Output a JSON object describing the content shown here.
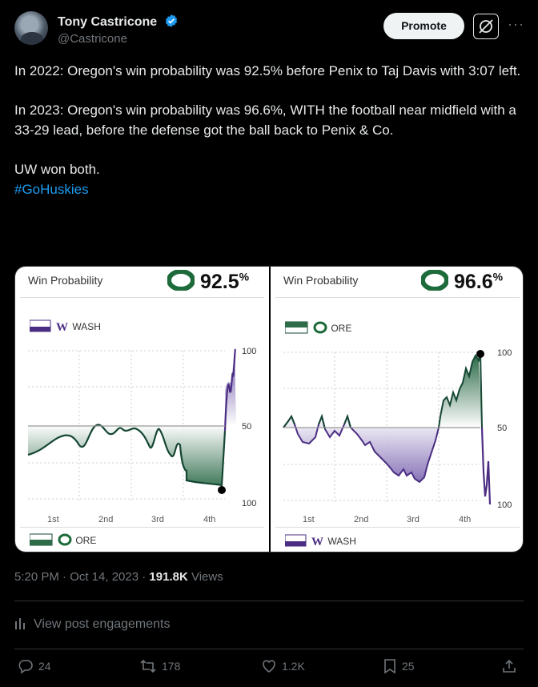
{
  "author": {
    "name": "Tony Castricone",
    "handle": "@Castricone",
    "verified": true
  },
  "header": {
    "promote_label": "Promote",
    "more_icon": "more-icon"
  },
  "tweet": {
    "paragraph1": "In 2022: Oregon's win probability was 92.5% before Penix to Taj Davis with 3:07 left.",
    "paragraph2": "In 2023: Oregon's win probability was 96.6%, WITH the football near midfield with a 33-29 lead, before the defense got the ball back to Penix & Co.",
    "paragraph3": "UW won both.",
    "hashtag": "#GoHuskies"
  },
  "charts": {
    "left": {
      "title": "Win Probability",
      "pct": "92.5",
      "pct_sup": "%",
      "top_team": "WASH",
      "bottom_team": "ORE",
      "y_top": "100",
      "y_mid": "50",
      "y_bot": "100",
      "quarters": [
        "1st",
        "2nd",
        "3rd",
        "4th"
      ]
    },
    "right": {
      "title": "Win Probability",
      "pct": "96.6",
      "pct_sup": "%",
      "top_team": "ORE",
      "bottom_team": "WASH",
      "y_top": "100",
      "y_mid": "50",
      "y_bot": "100",
      "quarters": [
        "1st",
        "2nd",
        "3rd",
        "4th"
      ]
    }
  },
  "chart_data": [
    {
      "type": "area",
      "title": "Win Probability",
      "series": [
        {
          "name": "ORE",
          "values": [
            70,
            62,
            58,
            60,
            67,
            58,
            62,
            70,
            60,
            58,
            65,
            55,
            78,
            80,
            90,
            92.5,
            20,
            5
          ]
        }
      ],
      "ylim": [
        0,
        100
      ]
    },
    {
      "type": "area",
      "title": "Win Probability",
      "series": [
        {
          "name": "ORE",
          "values": [
            52,
            44,
            40,
            55,
            62,
            70,
            65,
            72,
            75,
            82,
            90,
            88,
            70,
            74,
            60,
            30,
            40,
            96.6,
            10
          ]
        }
      ],
      "ylim": [
        0,
        100
      ]
    }
  ],
  "meta": {
    "time": "5:20 PM · Oct 14, 2023 · ",
    "views_count": "191.8K",
    "views_label": " Views"
  },
  "engagements_label": "View post engagements",
  "actions": {
    "replies": "24",
    "reposts": "178",
    "likes": "1.2K",
    "bookmarks": "25"
  },
  "colors": {
    "oregon_green": "#154733",
    "uw_purple": "#4b2e83",
    "link_blue": "#1d9bf0",
    "oregon_yellow_o": "#1d6b3a"
  }
}
